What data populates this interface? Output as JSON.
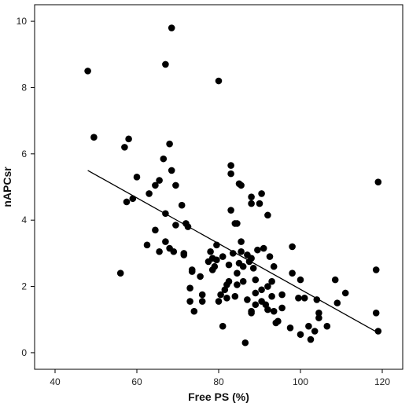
{
  "chart_data": {
    "type": "scatter",
    "xlabel": "Free PS (%)",
    "ylabel": "nAPCsr",
    "xlim": [
      35,
      125
    ],
    "ylim": [
      -0.5,
      10.5
    ],
    "xticks": [
      40,
      60,
      80,
      100,
      120
    ],
    "yticks": [
      0,
      2,
      4,
      6,
      8,
      10
    ],
    "grid": false,
    "legend": "none",
    "colors": {
      "points": "#000000",
      "line": "#000000",
      "background": "#ffffff"
    },
    "fit_line": {
      "from": [
        48,
        5.5
      ],
      "to": [
        119,
        0.6
      ]
    },
    "points": [
      [
        48,
        8.5
      ],
      [
        49.5,
        6.5
      ],
      [
        56,
        2.4
      ],
      [
        57,
        6.2
      ],
      [
        57.5,
        4.55
      ],
      [
        58,
        6.45
      ],
      [
        59,
        4.65
      ],
      [
        60,
        5.3
      ],
      [
        62.5,
        3.25
      ],
      [
        63,
        4.8
      ],
      [
        64.5,
        3.7
      ],
      [
        64.5,
        5.05
      ],
      [
        65.5,
        5.2
      ],
      [
        65.5,
        3.05
      ],
      [
        66.5,
        5.85
      ],
      [
        67,
        8.7
      ],
      [
        67,
        4.2
      ],
      [
        67,
        3.35
      ],
      [
        68,
        6.3
      ],
      [
        68.5,
        9.8
      ],
      [
        68.5,
        5.5
      ],
      [
        68,
        3.15
      ],
      [
        69,
        3.05
      ],
      [
        69.5,
        5.05
      ],
      [
        69.5,
        3.85
      ],
      [
        71,
        4.45
      ],
      [
        71.5,
        2.95
      ],
      [
        71.5,
        3.0
      ],
      [
        72,
        3.9
      ],
      [
        72.5,
        3.8
      ],
      [
        73,
        1.95
      ],
      [
        73,
        1.55
      ],
      [
        73.5,
        2.45
      ],
      [
        73.5,
        2.5
      ],
      [
        74,
        1.25
      ],
      [
        75.5,
        2.3
      ],
      [
        76,
        1.75
      ],
      [
        76,
        1.55
      ],
      [
        77.5,
        2.75
      ],
      [
        78,
        3.05
      ],
      [
        78.5,
        2.85
      ],
      [
        78.5,
        2.5
      ],
      [
        79,
        2.6
      ],
      [
        79.5,
        3.25
      ],
      [
        79.5,
        2.8
      ],
      [
        80,
        8.2
      ],
      [
        80,
        1.55
      ],
      [
        80.5,
        1.75
      ],
      [
        81,
        0.8
      ],
      [
        81,
        2.9
      ],
      [
        81.5,
        1.9
      ],
      [
        82,
        1.65
      ],
      [
        82,
        2.05
      ],
      [
        82.5,
        2.15
      ],
      [
        82.5,
        2.65
      ],
      [
        83,
        4.3
      ],
      [
        83,
        5.65
      ],
      [
        83,
        5.4
      ],
      [
        83.5,
        3.0
      ],
      [
        84,
        3.9
      ],
      [
        84,
        1.7
      ],
      [
        84.5,
        3.9
      ],
      [
        84.5,
        2.05
      ],
      [
        84.5,
        2.4
      ],
      [
        85,
        2.7
      ],
      [
        85,
        5.1
      ],
      [
        85.5,
        5.05
      ],
      [
        85.5,
        3.35
      ],
      [
        85.5,
        3.05
      ],
      [
        86,
        2.15
      ],
      [
        86,
        2.6
      ],
      [
        86.5,
        0.3
      ],
      [
        87,
        1.6
      ],
      [
        87,
        2.95
      ],
      [
        87.5,
        2.75
      ],
      [
        88,
        1.25
      ],
      [
        88,
        1.2
      ],
      [
        88,
        2.85
      ],
      [
        88,
        4.7
      ],
      [
        88,
        4.5
      ],
      [
        88.5,
        2.55
      ],
      [
        89,
        2.2
      ],
      [
        89,
        1.8
      ],
      [
        89,
        1.45
      ],
      [
        89.5,
        3.1
      ],
      [
        90,
        4.5
      ],
      [
        90.5,
        4.8
      ],
      [
        90.5,
        1.9
      ],
      [
        90.5,
        1.55
      ],
      [
        91,
        3.15
      ],
      [
        91.5,
        1.45
      ],
      [
        92,
        1.3
      ],
      [
        92,
        2.0
      ],
      [
        92,
        4.15
      ],
      [
        92.5,
        2.9
      ],
      [
        93,
        1.7
      ],
      [
        93,
        2.15
      ],
      [
        93.5,
        1.25
      ],
      [
        93.5,
        2.6
      ],
      [
        94,
        0.9
      ],
      [
        94.5,
        0.95
      ],
      [
        95.5,
        1.35
      ],
      [
        95.5,
        1.75
      ],
      [
        97.5,
        0.75
      ],
      [
        98,
        3.2
      ],
      [
        98,
        2.4
      ],
      [
        99.5,
        1.65
      ],
      [
        100,
        0.55
      ],
      [
        100,
        2.2
      ],
      [
        101,
        1.65
      ],
      [
        102,
        0.8
      ],
      [
        102.5,
        0.4
      ],
      [
        103.5,
        0.65
      ],
      [
        104,
        1.6
      ],
      [
        104.5,
        1.2
      ],
      [
        104.5,
        1.05
      ],
      [
        106.5,
        0.8
      ],
      [
        108.5,
        2.2
      ],
      [
        109,
        1.5
      ],
      [
        111,
        1.8
      ],
      [
        118.5,
        1.2
      ],
      [
        118.5,
        2.5
      ],
      [
        119,
        5.15
      ],
      [
        119,
        0.65
      ]
    ]
  }
}
